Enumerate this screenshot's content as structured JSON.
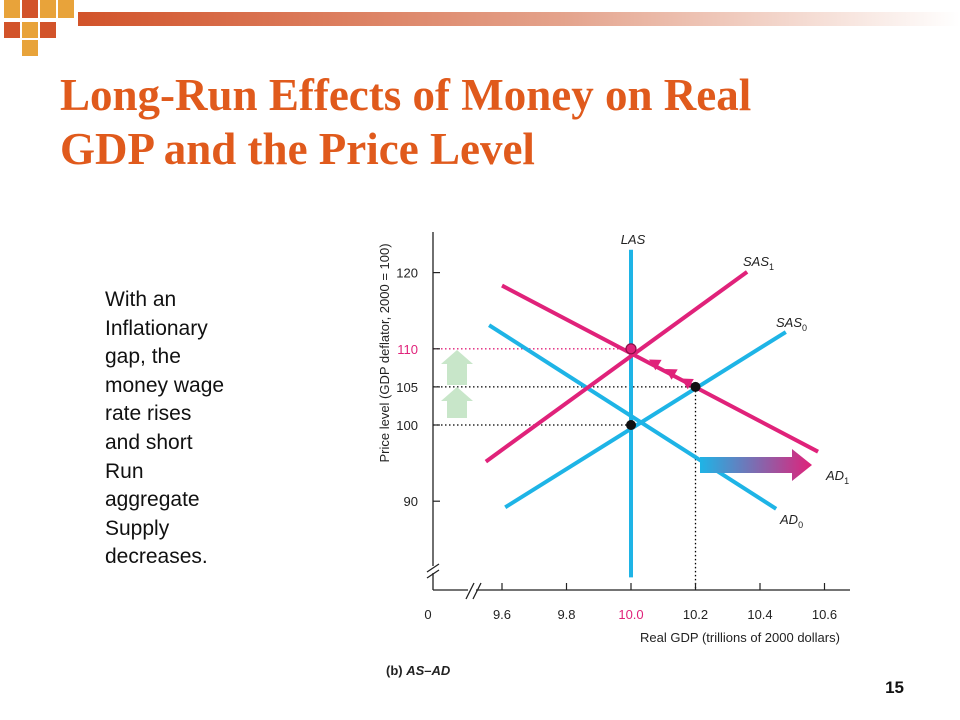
{
  "slide": {
    "title_lines": [
      "Long-Run Effects of Money on Real",
      "GDP and the Price Level"
    ],
    "body_lines": [
      "With an",
      "Inflationary",
      "gap, the",
      "money wage",
      "rate rises",
      "and short",
      "Run",
      "aggregate",
      "Supply",
      "decreases."
    ],
    "page_number": "15"
  },
  "colors": {
    "title": "#e05a1c",
    "deco_orange": "#e8a33a",
    "deco_red": "#d2532a",
    "cyan": "#1eb4e6",
    "magenta": "#e0227a",
    "arrow_up": "#c8e6c9"
  },
  "chart_data": {
    "type": "line",
    "ylabel": "Price level (GDP deflator, 2000 = 100)",
    "xlabel": "Real GDP (trillions of 2000 dollars)",
    "caption_prefix": "(b)",
    "caption_text": "AS–AD",
    "origin_label": "0",
    "x_ticks": [
      "9.6",
      "9.8",
      "10.0",
      "10.2",
      "10.4",
      "10.6"
    ],
    "y_ticks": [
      "90",
      "100",
      "105",
      "110",
      "120"
    ],
    "highlight_x_tick": "10.0",
    "highlight_y_tick": "110",
    "xlim": [
      9.45,
      10.65
    ],
    "ylim": [
      80,
      125
    ],
    "series": [
      {
        "name": "LAS",
        "color": "cyan",
        "points": [
          [
            10.0,
            123
          ],
          [
            10.0,
            80
          ]
        ]
      },
      {
        "name": "SAS",
        "sub": "0",
        "color": "cyan",
        "points": [
          [
            9.61,
            89.2
          ],
          [
            10.48,
            112.2
          ]
        ]
      },
      {
        "name": "AD",
        "sub": "0",
        "color": "cyan",
        "points": [
          [
            9.56,
            113.1
          ],
          [
            10.45,
            89.0
          ]
        ]
      },
      {
        "name": "SAS",
        "sub": "1",
        "color": "magenta",
        "points": [
          [
            9.55,
            95.2
          ],
          [
            10.36,
            120.1
          ]
        ]
      },
      {
        "name": "AD",
        "sub": "1",
        "color": "magenta",
        "points": [
          [
            9.6,
            118.3
          ],
          [
            10.58,
            96.5
          ]
        ]
      }
    ],
    "equilibrium_points": [
      {
        "x": 10.0,
        "y": 100,
        "color": "black"
      },
      {
        "x": 10.2,
        "y": 105,
        "color": "black"
      },
      {
        "x": 10.0,
        "y": 110,
        "color": "magenta"
      }
    ],
    "guide_lines": [
      {
        "y": 110,
        "x_to": 10.0,
        "color": "magenta"
      },
      {
        "y": 105,
        "x_to": 10.2,
        "color": "black"
      },
      {
        "y": 100,
        "x_to": 10.0,
        "color": "black"
      },
      {
        "x": 10.2,
        "y_from": 105,
        "y_to": 80,
        "color": "black"
      }
    ]
  }
}
